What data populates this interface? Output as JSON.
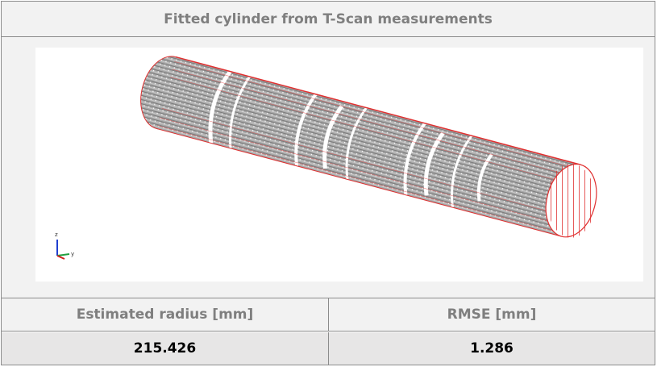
{
  "header": {
    "title": "Fitted cylinder from T-Scan measurements"
  },
  "image": {
    "axis_labels": [
      "z",
      "y"
    ]
  },
  "table": {
    "header": [
      "Estimated radius [mm]",
      "RMSE [mm]"
    ],
    "rows": [
      [
        "215.426",
        "1.286"
      ]
    ]
  }
}
